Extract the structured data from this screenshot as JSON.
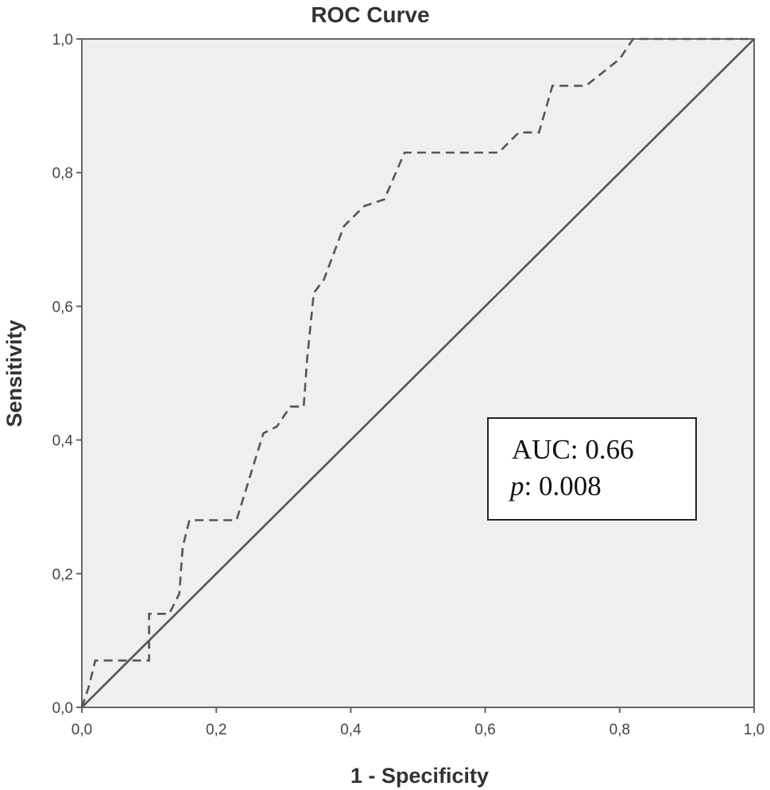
{
  "chart_data": {
    "type": "line",
    "title": "ROC Curve",
    "xlabel": "1 - Specificity",
    "ylabel": "Sensitivity",
    "xlim": [
      0,
      1
    ],
    "ylim": [
      0,
      1
    ],
    "xticks": [
      "0,0",
      "0,2",
      "0,4",
      "0,6",
      "0,8",
      "1,0"
    ],
    "yticks": [
      "0,0",
      "0,2",
      "0,4",
      "0,6",
      "0,8",
      "1,0"
    ],
    "grid": false,
    "background": "#eef0ef",
    "series": [
      {
        "style": "dashed",
        "color": "#555555",
        "points": [
          [
            0.0,
            0.0
          ],
          [
            0.01,
            0.03
          ],
          [
            0.02,
            0.07
          ],
          [
            0.1,
            0.07
          ],
          [
            0.1,
            0.14
          ],
          [
            0.13,
            0.14
          ],
          [
            0.145,
            0.17
          ],
          [
            0.15,
            0.24
          ],
          [
            0.16,
            0.28
          ],
          [
            0.23,
            0.28
          ],
          [
            0.27,
            0.41
          ],
          [
            0.29,
            0.42
          ],
          [
            0.31,
            0.45
          ],
          [
            0.33,
            0.45
          ],
          [
            0.335,
            0.52
          ],
          [
            0.345,
            0.62
          ],
          [
            0.36,
            0.64
          ],
          [
            0.39,
            0.72
          ],
          [
            0.42,
            0.75
          ],
          [
            0.45,
            0.76
          ],
          [
            0.48,
            0.83
          ],
          [
            0.62,
            0.83
          ],
          [
            0.65,
            0.86
          ],
          [
            0.68,
            0.86
          ],
          [
            0.7,
            0.93
          ],
          [
            0.75,
            0.93
          ],
          [
            0.8,
            0.97
          ],
          [
            0.82,
            1.0
          ],
          [
            1.0,
            1.0
          ]
        ]
      },
      {
        "style": "solid",
        "color": "#555555",
        "points": [
          [
            0,
            0
          ],
          [
            1,
            1
          ]
        ]
      }
    ],
    "annotation": {
      "auc_label": "AUC:",
      "auc_value": "0.66",
      "p_label": "p",
      "p_value": ": 0.008"
    }
  }
}
